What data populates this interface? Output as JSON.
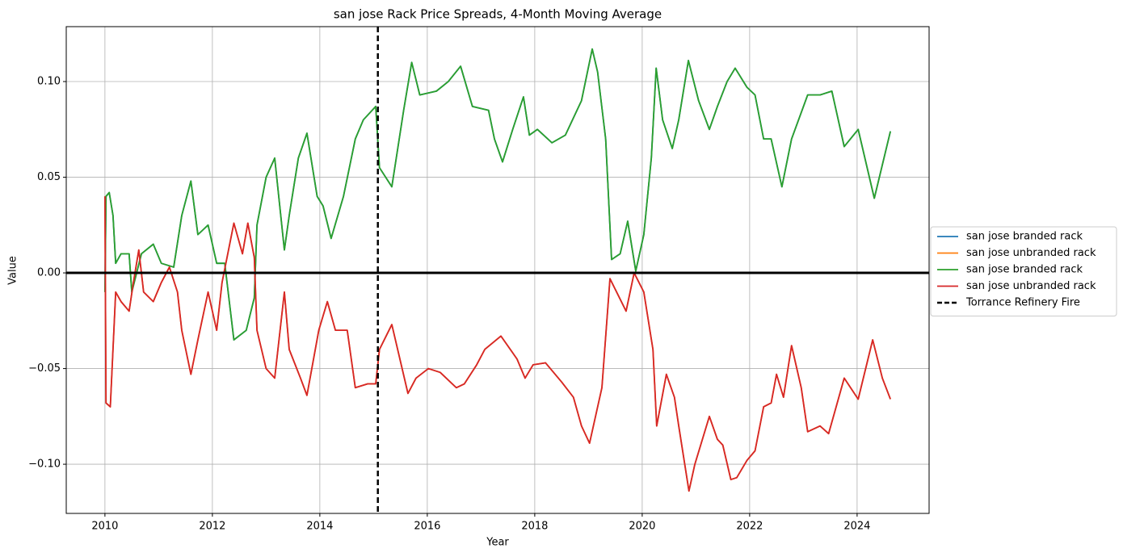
{
  "chart_data": {
    "type": "line",
    "title": "san jose Rack Price Spreads, 4-Month Moving Average",
    "x_label": "Year",
    "y_label": "Value",
    "xlim": [
      2009.28,
      2025.34
    ],
    "ylim": [
      -0.1257,
      0.1287
    ],
    "xticks": [
      2010,
      2012,
      2014,
      2016,
      2018,
      2020,
      2022,
      2024
    ],
    "yticks": [
      {
        "value": -0.1,
        "label": "−0.10"
      },
      {
        "value": -0.05,
        "label": "−0.05"
      },
      {
        "value": 0,
        "label": "0.00"
      },
      {
        "value": 0.05,
        "label": "0.05"
      },
      {
        "value": 0.1,
        "label": "0.10"
      }
    ],
    "grid": true,
    "legend": "outside right",
    "hline": {
      "y": 0,
      "color": "#000000"
    },
    "vline": {
      "x": 2015.08,
      "name": "Torrance Refinery Fire",
      "color": "#000000"
    },
    "series": [
      {
        "name": "san jose branded rack",
        "color": "#1f77b4",
        "x": [
          2010.0,
          2010.02,
          2010.08,
          2010.15,
          2010.2,
          2010.3,
          2010.45,
          2010.5,
          2010.68,
          2010.9,
          2011.05,
          2011.28,
          2011.43,
          2011.6,
          2011.73,
          2011.92,
          2012.08,
          2012.23,
          2012.4,
          2012.63,
          2012.78,
          2012.83,
          2013.0,
          2013.16,
          2013.34,
          2013.43,
          2013.6,
          2013.76,
          2013.95,
          2014.06,
          2014.21,
          2014.44,
          2014.66,
          2014.81,
          2015.04,
          2015.11,
          2015.34,
          2015.56,
          2015.71,
          2015.86,
          2016.17,
          2016.39,
          2016.62,
          2016.84,
          2017.14,
          2017.25,
          2017.4,
          2017.59,
          2017.79,
          2017.9,
          2018.05,
          2018.32,
          2018.57,
          2018.87,
          2019.07,
          2019.17,
          2019.32,
          2019.43,
          2019.59,
          2019.73,
          2019.88,
          2020.03,
          2020.17,
          2020.26,
          2020.38,
          2020.56,
          2020.68,
          2020.86,
          2021.05,
          2021.25,
          2021.4,
          2021.58,
          2021.73,
          2021.95,
          2022.1,
          2022.26,
          2022.4,
          2022.6,
          2022.78,
          2023.08,
          2023.31,
          2023.53,
          2023.76,
          2024.02,
          2024.32,
          2024.62
        ],
        "values": [
          -0.01,
          0.04,
          0.042,
          0.03,
          0.005,
          0.01,
          0.01,
          -0.01,
          0.01,
          0.015,
          0.005,
          0.003,
          0.03,
          0.048,
          0.02,
          0.025,
          0.005,
          0.005,
          -0.035,
          -0.03,
          -0.013,
          0.025,
          0.05,
          0.06,
          0.012,
          0.03,
          0.06,
          0.073,
          0.04,
          0.035,
          0.018,
          0.04,
          0.07,
          0.08,
          0.087,
          0.055,
          0.045,
          0.085,
          0.11,
          0.093,
          0.095,
          0.1,
          0.108,
          0.087,
          0.085,
          0.07,
          0.058,
          0.075,
          0.092,
          0.072,
          0.075,
          0.068,
          0.072,
          0.09,
          0.117,
          0.105,
          0.07,
          0.007,
          0.01,
          0.027,
          0.001,
          0.02,
          0.06,
          0.107,
          0.08,
          0.065,
          0.08,
          0.111,
          0.09,
          0.075,
          0.087,
          0.1,
          0.107,
          0.097,
          0.093,
          0.07,
          0.07,
          0.045,
          0.07,
          0.093,
          0.093,
          0.095,
          0.066,
          0.075,
          0.039,
          0.074
        ]
      },
      {
        "name": "san jose unbranded rack",
        "color": "#ff7f0e",
        "x": [
          2010.0,
          2010.02,
          2010.1,
          2010.2,
          2010.3,
          2010.45,
          2010.53,
          2010.63,
          2010.72,
          2010.9,
          2011.05,
          2011.2,
          2011.35,
          2011.43,
          2011.6,
          2011.73,
          2011.92,
          2012.08,
          2012.18,
          2012.4,
          2012.56,
          2012.66,
          2012.78,
          2012.83,
          2013.0,
          2013.16,
          2013.34,
          2013.43,
          2013.64,
          2013.76,
          2013.98,
          2014.14,
          2014.29,
          2014.51,
          2014.66,
          2014.89,
          2015.04,
          2015.11,
          2015.34,
          2015.64,
          2015.79,
          2016.02,
          2016.24,
          2016.54,
          2016.69,
          2016.92,
          2017.07,
          2017.37,
          2017.67,
          2017.82,
          2017.97,
          2018.2,
          2018.5,
          2018.72,
          2018.87,
          2019.02,
          2019.25,
          2019.4,
          2019.7,
          2019.85,
          2020.03,
          2020.2,
          2020.27,
          2020.45,
          2020.6,
          2020.68,
          2020.87,
          2020.98,
          2021.25,
          2021.4,
          2021.5,
          2021.65,
          2021.76,
          2021.95,
          2022.1,
          2022.26,
          2022.4,
          2022.5,
          2022.63,
          2022.78,
          2022.96,
          2023.08,
          2023.31,
          2023.47,
          2023.76,
          2024.02,
          2024.29,
          2024.47,
          2024.62
        ],
        "values": [
          0.04,
          -0.068,
          -0.07,
          -0.01,
          -0.015,
          -0.02,
          -0.005,
          0.012,
          -0.01,
          -0.015,
          -0.005,
          0.003,
          -0.01,
          -0.03,
          -0.053,
          -0.035,
          -0.01,
          -0.03,
          -0.005,
          0.026,
          0.01,
          0.026,
          0.008,
          -0.03,
          -0.05,
          -0.055,
          -0.01,
          -0.04,
          -0.055,
          -0.064,
          -0.03,
          -0.015,
          -0.03,
          -0.03,
          -0.06,
          -0.058,
          -0.058,
          -0.04,
          -0.027,
          -0.063,
          -0.055,
          -0.05,
          -0.052,
          -0.06,
          -0.058,
          -0.048,
          -0.04,
          -0.033,
          -0.045,
          -0.055,
          -0.048,
          -0.047,
          -0.057,
          -0.065,
          -0.08,
          -0.089,
          -0.06,
          -0.003,
          -0.02,
          0.0,
          -0.01,
          -0.04,
          -0.08,
          -0.053,
          -0.065,
          -0.08,
          -0.114,
          -0.1,
          -0.075,
          -0.087,
          -0.09,
          -0.108,
          -0.107,
          -0.098,
          -0.093,
          -0.07,
          -0.068,
          -0.053,
          -0.065,
          -0.038,
          -0.06,
          -0.083,
          -0.08,
          -0.084,
          -0.055,
          -0.066,
          -0.035,
          -0.055,
          -0.066
        ]
      },
      {
        "name": "san jose branded rack",
        "color": "#2ca02c",
        "x": [
          2010.0,
          2010.02,
          2010.08,
          2010.15,
          2010.2,
          2010.3,
          2010.45,
          2010.5,
          2010.68,
          2010.9,
          2011.05,
          2011.28,
          2011.43,
          2011.6,
          2011.73,
          2011.92,
          2012.08,
          2012.23,
          2012.4,
          2012.63,
          2012.78,
          2012.83,
          2013.0,
          2013.16,
          2013.34,
          2013.43,
          2013.6,
          2013.76,
          2013.95,
          2014.06,
          2014.21,
          2014.44,
          2014.66,
          2014.81,
          2015.04,
          2015.11,
          2015.34,
          2015.56,
          2015.71,
          2015.86,
          2016.17,
          2016.39,
          2016.62,
          2016.84,
          2017.14,
          2017.25,
          2017.4,
          2017.59,
          2017.79,
          2017.9,
          2018.05,
          2018.32,
          2018.57,
          2018.87,
          2019.07,
          2019.17,
          2019.32,
          2019.43,
          2019.59,
          2019.73,
          2019.88,
          2020.03,
          2020.17,
          2020.26,
          2020.38,
          2020.56,
          2020.68,
          2020.86,
          2021.05,
          2021.25,
          2021.4,
          2021.58,
          2021.73,
          2021.95,
          2022.1,
          2022.26,
          2022.4,
          2022.6,
          2022.78,
          2023.08,
          2023.31,
          2023.53,
          2023.76,
          2024.02,
          2024.32,
          2024.62
        ],
        "values": [
          -0.01,
          0.04,
          0.042,
          0.03,
          0.005,
          0.01,
          0.01,
          -0.01,
          0.01,
          0.015,
          0.005,
          0.003,
          0.03,
          0.048,
          0.02,
          0.025,
          0.005,
          0.005,
          -0.035,
          -0.03,
          -0.013,
          0.025,
          0.05,
          0.06,
          0.012,
          0.03,
          0.06,
          0.073,
          0.04,
          0.035,
          0.018,
          0.04,
          0.07,
          0.08,
          0.087,
          0.055,
          0.045,
          0.085,
          0.11,
          0.093,
          0.095,
          0.1,
          0.108,
          0.087,
          0.085,
          0.07,
          0.058,
          0.075,
          0.092,
          0.072,
          0.075,
          0.068,
          0.072,
          0.09,
          0.117,
          0.105,
          0.07,
          0.007,
          0.01,
          0.027,
          0.001,
          0.02,
          0.06,
          0.107,
          0.08,
          0.065,
          0.08,
          0.111,
          0.09,
          0.075,
          0.087,
          0.1,
          0.107,
          0.097,
          0.093,
          0.07,
          0.07,
          0.045,
          0.07,
          0.093,
          0.093,
          0.095,
          0.066,
          0.075,
          0.039,
          0.074
        ]
      },
      {
        "name": "san jose unbranded rack",
        "color": "#d62728",
        "x": [
          2010.0,
          2010.02,
          2010.1,
          2010.2,
          2010.3,
          2010.45,
          2010.53,
          2010.63,
          2010.72,
          2010.9,
          2011.05,
          2011.2,
          2011.35,
          2011.43,
          2011.6,
          2011.73,
          2011.92,
          2012.08,
          2012.18,
          2012.4,
          2012.56,
          2012.66,
          2012.78,
          2012.83,
          2013.0,
          2013.16,
          2013.34,
          2013.43,
          2013.64,
          2013.76,
          2013.98,
          2014.14,
          2014.29,
          2014.51,
          2014.66,
          2014.89,
          2015.04,
          2015.11,
          2015.34,
          2015.64,
          2015.79,
          2016.02,
          2016.24,
          2016.54,
          2016.69,
          2016.92,
          2017.07,
          2017.37,
          2017.67,
          2017.82,
          2017.97,
          2018.2,
          2018.5,
          2018.72,
          2018.87,
          2019.02,
          2019.25,
          2019.4,
          2019.7,
          2019.85,
          2020.03,
          2020.2,
          2020.27,
          2020.45,
          2020.6,
          2020.68,
          2020.87,
          2020.98,
          2021.25,
          2021.4,
          2021.5,
          2021.65,
          2021.76,
          2021.95,
          2022.1,
          2022.26,
          2022.4,
          2022.5,
          2022.63,
          2022.78,
          2022.96,
          2023.08,
          2023.31,
          2023.47,
          2023.76,
          2024.02,
          2024.29,
          2024.47,
          2024.62
        ],
        "values": [
          0.04,
          -0.068,
          -0.07,
          -0.01,
          -0.015,
          -0.02,
          -0.005,
          0.012,
          -0.01,
          -0.015,
          -0.005,
          0.003,
          -0.01,
          -0.03,
          -0.053,
          -0.035,
          -0.01,
          -0.03,
          -0.005,
          0.026,
          0.01,
          0.026,
          0.008,
          -0.03,
          -0.05,
          -0.055,
          -0.01,
          -0.04,
          -0.055,
          -0.064,
          -0.03,
          -0.015,
          -0.03,
          -0.03,
          -0.06,
          -0.058,
          -0.058,
          -0.04,
          -0.027,
          -0.063,
          -0.055,
          -0.05,
          -0.052,
          -0.06,
          -0.058,
          -0.048,
          -0.04,
          -0.033,
          -0.045,
          -0.055,
          -0.048,
          -0.047,
          -0.057,
          -0.065,
          -0.08,
          -0.089,
          -0.06,
          -0.003,
          -0.02,
          0.0,
          -0.01,
          -0.04,
          -0.08,
          -0.053,
          -0.065,
          -0.08,
          -0.114,
          -0.1,
          -0.075,
          -0.087,
          -0.09,
          -0.108,
          -0.107,
          -0.098,
          -0.093,
          -0.07,
          -0.068,
          -0.053,
          -0.065,
          -0.038,
          -0.06,
          -0.083,
          -0.08,
          -0.084,
          -0.055,
          -0.066,
          -0.035,
          -0.055,
          -0.066
        ]
      }
    ]
  }
}
